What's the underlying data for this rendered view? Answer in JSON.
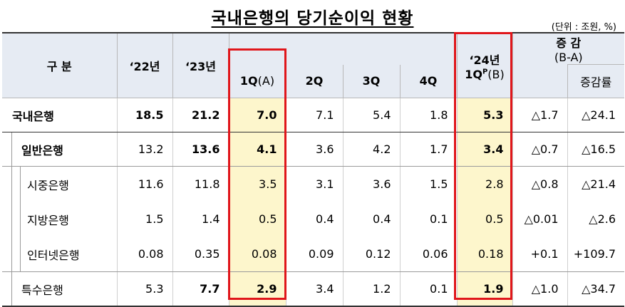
{
  "title": "국내은행의 당기순이익 현황",
  "unit": "(단위 : 조원, %)",
  "header": {
    "category": "구 분",
    "y22": "‘22년",
    "y23": "‘23년",
    "q1": "1Q",
    "q1_suffix": "(A)",
    "q2": "2Q",
    "q3": "3Q",
    "q4": "4Q",
    "y24": "‘24년",
    "y24_q": "1Q",
    "y24_sup": "P",
    "y24_suffix": "(B)",
    "change": "증 감",
    "change_sub": "(B-A)",
    "change_rate": "증감률"
  },
  "rows": [
    {
      "label": "국내은행",
      "y22": "18.5",
      "y23": "21.2",
      "q1": "7.0",
      "q2": "7.1",
      "q3": "5.4",
      "q4": "1.8",
      "y24q1": "5.3",
      "diff": "△1.7",
      "rate": "△24.1"
    },
    {
      "label": "일반은행",
      "y22": "13.2",
      "y23": "13.6",
      "q1": "4.1",
      "q2": "3.6",
      "q3": "4.2",
      "q4": "1.7",
      "y24q1": "3.4",
      "diff": "△0.7",
      "rate": "△16.5"
    },
    {
      "label": "시중은행",
      "y22": "11.6",
      "y23": "11.8",
      "q1": "3.5",
      "q2": "3.1",
      "q3": "3.6",
      "q4": "1.5",
      "y24q1": "2.8",
      "diff": "△0.8",
      "rate": "△21.4"
    },
    {
      "label": "지방은행",
      "y22": "1.5",
      "y23": "1.4",
      "q1": "0.5",
      "q2": "0.4",
      "q3": "0.4",
      "q4": "0.1",
      "y24q1": "0.5",
      "diff": "△0.01",
      "rate": "△2.6"
    },
    {
      "label": "인터넷은행",
      "y22": "0.08",
      "y23": "0.35",
      "q1": "0.08",
      "q2": "0.09",
      "q3": "0.12",
      "q4": "0.06",
      "y24q1": "0.18",
      "diff": "+0.1",
      "rate": "+109.7"
    },
    {
      "label": "특수은행",
      "y22": "5.3",
      "y23": "7.7",
      "q1": "2.9",
      "q2": "3.4",
      "q3": "1.2",
      "q4": "0.1",
      "y24q1": "1.9",
      "diff": "△1.0",
      "rate": "△34.7"
    }
  ],
  "colors": {
    "highlight": "#fdf6cc",
    "header_bg": "#e6ebf3",
    "red_box": "#e0161b"
  }
}
